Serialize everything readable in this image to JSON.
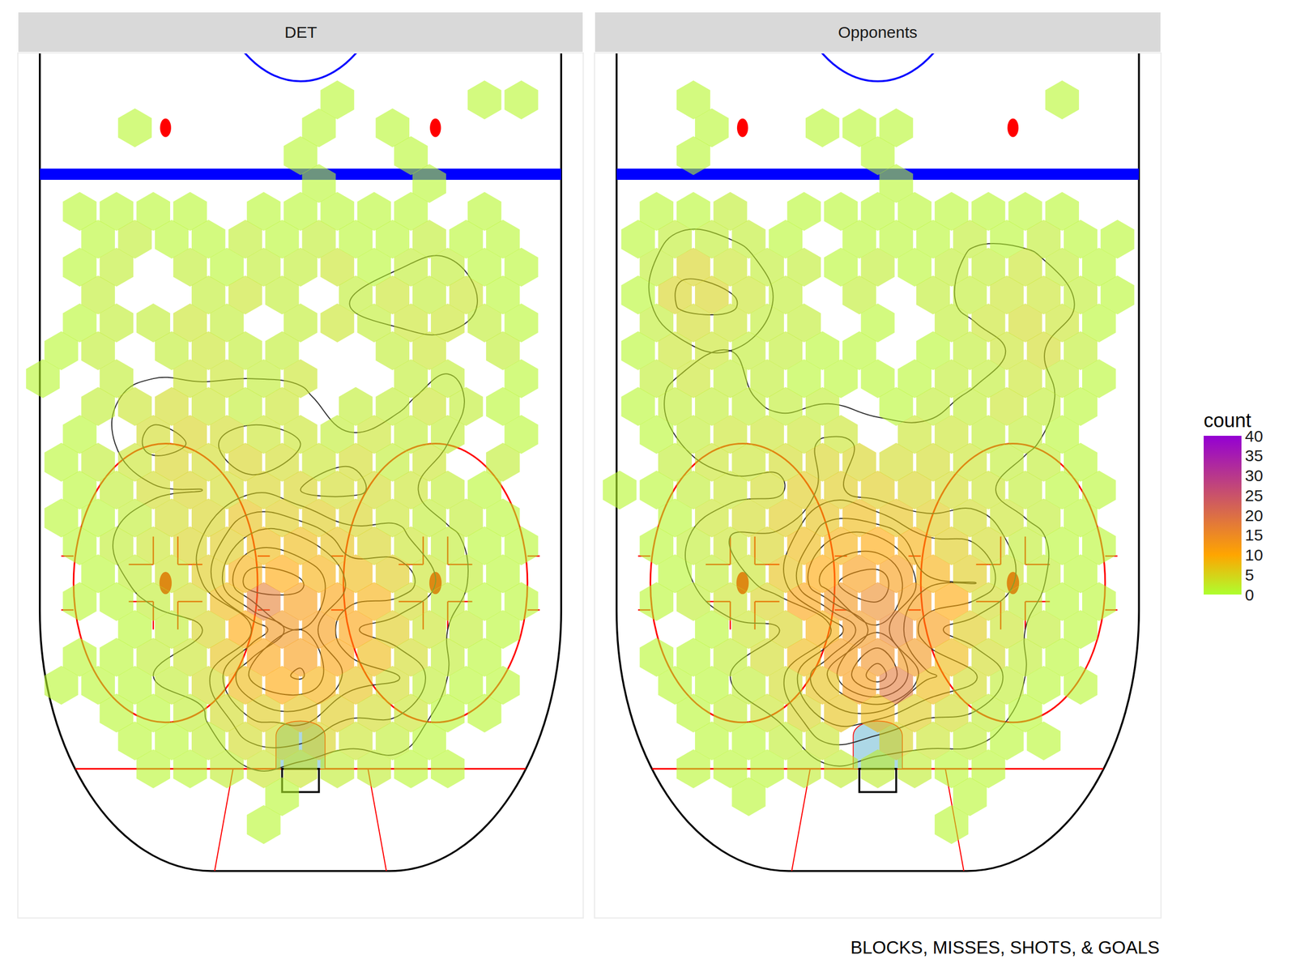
{
  "chart_data": {
    "type": "hexbin",
    "caption": "BLOCKS, MISSES, SHOTS, & GOALS",
    "tick_labels": false,
    "xlim": [
      -46,
      46
    ],
    "ylim": [
      105,
      12
    ],
    "color_title": "count",
    "color_range": [
      0,
      40
    ],
    "color_ticks": [
      0,
      5,
      10,
      15,
      20,
      25,
      30,
      35,
      40
    ],
    "hex_x_even": [
      -39,
      -33,
      -27,
      -21,
      -15,
      -9,
      -3,
      3,
      9,
      15,
      21,
      27,
      33,
      39
    ],
    "hex_x_odd": [
      -42,
      -36,
      -30,
      -24,
      -18,
      -12,
      -6,
      0,
      6,
      12,
      18,
      24,
      30,
      36,
      42
    ],
    "hex_y": [
      14,
      17,
      20,
      23,
      26,
      29,
      32,
      35,
      38,
      41,
      44,
      47,
      50,
      53,
      56,
      59,
      62,
      65,
      68,
      71,
      74,
      77,
      80,
      83,
      86,
      89,
      92,
      95
    ],
    "panels": [
      {
        "title": "DET",
        "counts": [
          [
            null,
            null,
            null,
            null,
            null,
            null,
            null,
            null,
            null,
            null,
            null,
            null,
            null,
            null
          ],
          [
            null,
            null,
            null,
            null,
            null,
            null,
            null,
            null,
            1,
            null,
            null,
            null,
            1,
            1,
            null
          ],
          [
            null,
            null,
            1,
            null,
            null,
            null,
            null,
            1,
            null,
            1,
            null,
            null,
            null,
            null
          ],
          [
            null,
            null,
            null,
            null,
            null,
            null,
            null,
            1,
            null,
            null,
            1,
            null,
            null,
            null,
            null
          ],
          [
            null,
            null,
            null,
            null,
            null,
            null,
            null,
            1,
            null,
            null,
            1,
            null,
            null,
            null
          ],
          [
            null,
            1,
            1,
            1,
            1,
            null,
            1,
            1,
            1,
            1,
            1,
            null,
            1,
            null,
            null
          ],
          [
            null,
            1,
            2,
            1,
            1,
            2,
            1,
            2,
            1,
            1,
            2,
            1,
            1,
            null
          ],
          [
            null,
            1,
            2,
            null,
            2,
            1,
            2,
            2,
            3,
            1,
            2,
            2,
            1,
            1,
            null
          ],
          [
            null,
            2,
            null,
            null,
            2,
            3,
            2,
            null,
            2,
            3,
            2,
            3,
            1,
            null
          ],
          [
            null,
            1,
            2,
            2,
            3,
            2,
            null,
            2,
            3,
            2,
            3,
            3,
            2,
            1,
            null
          ],
          [
            1,
            2,
            null,
            2,
            3,
            2,
            2,
            null,
            null,
            2,
            3,
            null,
            2,
            null
          ],
          [
            1,
            null,
            2,
            null,
            3,
            3,
            2,
            3,
            null,
            null,
            2,
            2,
            null,
            1,
            null
          ],
          [
            null,
            2,
            3,
            4,
            3,
            2,
            3,
            null,
            2,
            2,
            3,
            2,
            1,
            null
          ],
          [
            null,
            1,
            null,
            4,
            5,
            4,
            3,
            3,
            2,
            3,
            2,
            2,
            null,
            1,
            null
          ],
          [
            1,
            2,
            3,
            5,
            4,
            5,
            4,
            3,
            4,
            2,
            3,
            null,
            2,
            null
          ],
          [
            null,
            1,
            2,
            4,
            5,
            4,
            5,
            5,
            4,
            4,
            3,
            2,
            1,
            null,
            null
          ],
          [
            1,
            1,
            2,
            4,
            5,
            7,
            6,
            6,
            5,
            3,
            2,
            2,
            1,
            null
          ],
          [
            null,
            1,
            2,
            3,
            5,
            6,
            8,
            8,
            7,
            5,
            3,
            2,
            1,
            1,
            null
          ],
          [
            null,
            1,
            2,
            3,
            6,
            9,
            10,
            9,
            8,
            6,
            3,
            2,
            1,
            null
          ],
          [
            null,
            1,
            1,
            2,
            4,
            8,
            17,
            12,
            11,
            9,
            4,
            2,
            1,
            1,
            null
          ],
          [
            null,
            null,
            1,
            2,
            5,
            10,
            13,
            12,
            11,
            6,
            3,
            2,
            1,
            null
          ],
          [
            null,
            1,
            1,
            2,
            3,
            7,
            11,
            12,
            11,
            8,
            4,
            2,
            1,
            null,
            null
          ],
          [
            1,
            1,
            1,
            2,
            4,
            8,
            10,
            9,
            7,
            4,
            2,
            1,
            1,
            null
          ],
          [
            null,
            null,
            1,
            1,
            2,
            4,
            6,
            7,
            6,
            4,
            3,
            1,
            1,
            null,
            null
          ],
          [
            null,
            null,
            1,
            1,
            2,
            4,
            4,
            5,
            3,
            2,
            1,
            null,
            null,
            null
          ],
          [
            null,
            null,
            null,
            1,
            1,
            2,
            3,
            3,
            2,
            2,
            1,
            1,
            null,
            null,
            null
          ],
          [
            null,
            null,
            null,
            null,
            null,
            null,
            1,
            null,
            null,
            null,
            null,
            null,
            null,
            null
          ],
          [
            null,
            null,
            null,
            null,
            null,
            null,
            1,
            null,
            null,
            null,
            null,
            null,
            null,
            null,
            null
          ]
        ]
      },
      {
        "title": "Opponents",
        "counts": [
          [
            null,
            null,
            null,
            null,
            null,
            null,
            null,
            null,
            null,
            null,
            null,
            null,
            null,
            null
          ],
          [
            null,
            null,
            1,
            null,
            null,
            null,
            null,
            null,
            null,
            null,
            null,
            null,
            1,
            null,
            null
          ],
          [
            null,
            null,
            1,
            null,
            null,
            1,
            1,
            1,
            null,
            null,
            null,
            null,
            null,
            null
          ],
          [
            null,
            null,
            1,
            null,
            null,
            null,
            null,
            1,
            null,
            null,
            null,
            null,
            null,
            null,
            null
          ],
          [
            null,
            null,
            null,
            null,
            null,
            null,
            null,
            1,
            null,
            null,
            null,
            null,
            null,
            null
          ],
          [
            null,
            1,
            1,
            2,
            null,
            1,
            1,
            1,
            1,
            1,
            1,
            1,
            1,
            null,
            null
          ],
          [
            1,
            2,
            2,
            2,
            1,
            null,
            1,
            1,
            1,
            2,
            1,
            2,
            1,
            1
          ],
          [
            null,
            2,
            5,
            3,
            2,
            2,
            1,
            2,
            1,
            2,
            2,
            3,
            2,
            1,
            null
          ],
          [
            1,
            5,
            5,
            3,
            2,
            null,
            2,
            null,
            2,
            2,
            3,
            3,
            2,
            1
          ],
          [
            null,
            2,
            4,
            3,
            2,
            2,
            null,
            1,
            null,
            2,
            3,
            4,
            3,
            1,
            null
          ],
          [
            1,
            3,
            3,
            2,
            2,
            1,
            1,
            null,
            1,
            2,
            3,
            4,
            2,
            null
          ],
          [
            null,
            2,
            3,
            2,
            2,
            1,
            1,
            1,
            1,
            2,
            2,
            3,
            2,
            1,
            null
          ],
          [
            1,
            2,
            2,
            2,
            2,
            2,
            null,
            1,
            2,
            2,
            3,
            2,
            1,
            null
          ],
          [
            null,
            1,
            2,
            3,
            3,
            3,
            3,
            null,
            3,
            3,
            2,
            2,
            1,
            null,
            null
          ],
          [
            null,
            2,
            3,
            3,
            4,
            5,
            5,
            4,
            4,
            3,
            2,
            2,
            1,
            null
          ],
          [
            1,
            1,
            2,
            3,
            4,
            6,
            6,
            6,
            5,
            4,
            3,
            2,
            1,
            1,
            null
          ],
          [
            null,
            1,
            3,
            4,
            6,
            7,
            8,
            7,
            6,
            4,
            3,
            2,
            1,
            null
          ],
          [
            null,
            1,
            2,
            3,
            5,
            8,
            9,
            10,
            9,
            6,
            4,
            2,
            1,
            1,
            null
          ],
          [
            null,
            1,
            2,
            3,
            7,
            10,
            12,
            12,
            9,
            6,
            3,
            2,
            1,
            null
          ],
          [
            null,
            1,
            2,
            3,
            5,
            11,
            13,
            15,
            12,
            10,
            4,
            2,
            1,
            1,
            null
          ],
          [
            null,
            null,
            1,
            3,
            5,
            9,
            13,
            16,
            12,
            6,
            3,
            2,
            1,
            null
          ],
          [
            null,
            1,
            1,
            2,
            4,
            8,
            12,
            14,
            13,
            8,
            4,
            2,
            1,
            null,
            null
          ],
          [
            null,
            1,
            1,
            2,
            4,
            7,
            12,
            18,
            8,
            4,
            2,
            1,
            1,
            null
          ],
          [
            null,
            null,
            1,
            2,
            3,
            5,
            7,
            8,
            6,
            4,
            2,
            1,
            null,
            null,
            null
          ],
          [
            null,
            null,
            1,
            1,
            2,
            3,
            null,
            5,
            3,
            2,
            1,
            1,
            null,
            null
          ],
          [
            null,
            null,
            1,
            1,
            1,
            2,
            2,
            2,
            2,
            1,
            1,
            null,
            null,
            null,
            null
          ],
          [
            null,
            null,
            null,
            1,
            null,
            null,
            null,
            null,
            null,
            1,
            null,
            null,
            null,
            null
          ],
          [
            null,
            null,
            null,
            null,
            null,
            null,
            null,
            null,
            null,
            1,
            null,
            null,
            null,
            null,
            null
          ]
        ]
      }
    ]
  }
}
